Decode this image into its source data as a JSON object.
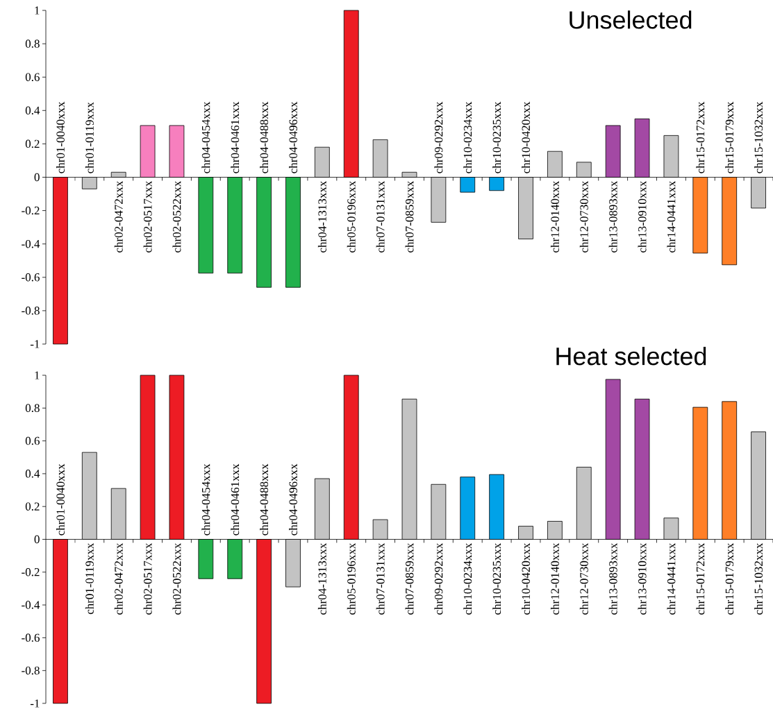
{
  "chart_data": [
    {
      "type": "bar",
      "title": "Unselected",
      "categories": [
        "chr01-0040xxx",
        "chr01-0119xxx",
        "chr02-0472xxx",
        "chr02-0517xxx",
        "chr02-0522xxx",
        "chr04-0454xxx",
        "chr04-0461xxx",
        "chr04-0488xxx",
        "chr04-0496xxx",
        "chr04-1313xxx",
        "chr05-0196xxx",
        "chr07-0131xxx",
        "chr07-0859xxx",
        "chr09-0292xxx",
        "chr10-0234xxx",
        "chr10-0235xxx",
        "chr10-0420xxx",
        "chr12-0140xxx",
        "chr12-0730xxx",
        "chr13-0893xxx",
        "chr13-0910xxx",
        "chr14-0441xxx",
        "chr15-0172xxx",
        "chr15-0179xxx",
        "chr15-1032xxx"
      ],
      "values": [
        -1,
        -0.07,
        0.03,
        0.31,
        0.31,
        -0.575,
        -0.575,
        -0.66,
        -0.66,
        0.18,
        1,
        0.225,
        0.03,
        -0.27,
        -0.09,
        -0.08,
        -0.37,
        0.155,
        0.09,
        0.31,
        0.35,
        0.25,
        -0.455,
        -0.525,
        -0.185
      ],
      "colors": [
        "#ed1c24",
        "#c3c3c3",
        "#c3c3c3",
        "#f77fbe",
        "#f77fbe",
        "#22b14c",
        "#22b14c",
        "#22b14c",
        "#22b14c",
        "#c3c3c3",
        "#ed1c24",
        "#c3c3c3",
        "#c3c3c3",
        "#c3c3c3",
        "#00a2e8",
        "#00a2e8",
        "#c3c3c3",
        "#c3c3c3",
        "#c3c3c3",
        "#a349a4",
        "#a349a4",
        "#c3c3c3",
        "#ff7f27",
        "#ff7f27",
        "#c3c3c3"
      ],
      "ylim": [
        -1,
        1
      ],
      "yticks": [
        -1,
        -0.8,
        -0.6,
        -0.4,
        -0.2,
        0,
        0.2,
        0.4,
        0.6,
        0.8,
        1
      ]
    },
    {
      "type": "bar",
      "title": "Heat selected",
      "categories": [
        "chr01-0040xxx",
        "chr01-0119xxx",
        "chr02-0472xxx",
        "chr02-0517xxx",
        "chr02-0522xxx",
        "chr04-0454xxx",
        "chr04-0461xxx",
        "chr04-0488xxx",
        "chr04-0496xxx",
        "chr04-1313xxx",
        "chr05-0196xxx",
        "chr07-0131xxx",
        "chr07-0859xxx",
        "chr09-0292xxx",
        "chr10-0234xxx",
        "chr10-0235xxx",
        "chr10-0420xxx",
        "chr12-0140xxx",
        "chr12-0730xxx",
        "chr13-0893xxx",
        "chr13-0910xxx",
        "chr14-0441xxx",
        "chr15-0172xxx",
        "chr15-0179xxx",
        "chr15-1032xxx"
      ],
      "values": [
        -1,
        0.53,
        0.31,
        1,
        1,
        -0.24,
        -0.24,
        -1,
        -0.29,
        0.37,
        1,
        0.12,
        0.855,
        0.335,
        0.38,
        0.395,
        0.08,
        0.11,
        0.44,
        0.975,
        0.855,
        0.13,
        0.805,
        0.84,
        0.655
      ],
      "colors": [
        "#ed1c24",
        "#c3c3c3",
        "#c3c3c3",
        "#ed1c24",
        "#ed1c24",
        "#22b14c",
        "#22b14c",
        "#ed1c24",
        "#c3c3c3",
        "#c3c3c3",
        "#ed1c24",
        "#c3c3c3",
        "#c3c3c3",
        "#c3c3c3",
        "#00a2e8",
        "#00a2e8",
        "#c3c3c3",
        "#c3c3c3",
        "#c3c3c3",
        "#a349a4",
        "#a349a4",
        "#c3c3c3",
        "#ff7f27",
        "#ff7f27",
        "#c3c3c3"
      ],
      "ylim": [
        -1,
        1
      ],
      "yticks": [
        -1,
        -0.8,
        -0.6,
        -0.4,
        -0.2,
        0,
        0.2,
        0.4,
        0.6,
        0.8,
        1
      ]
    }
  ]
}
